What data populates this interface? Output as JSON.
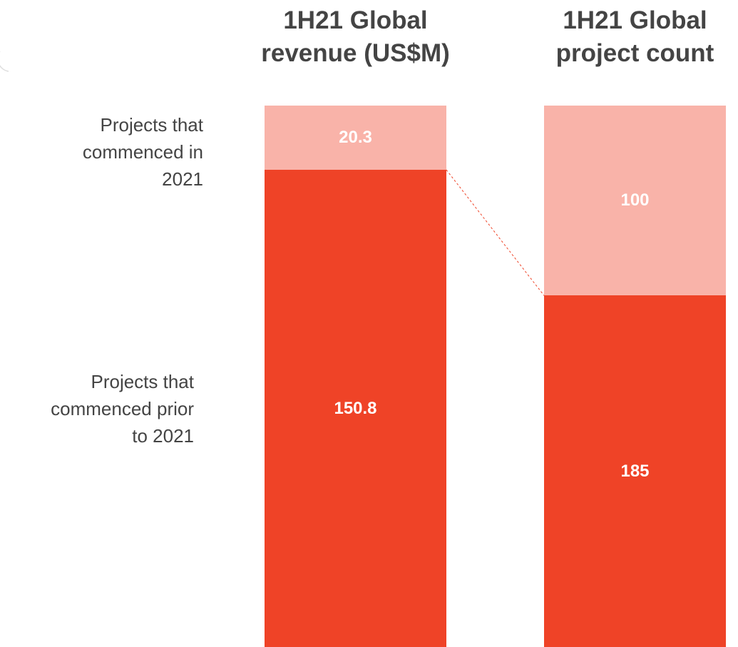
{
  "chart_data": {
    "type": "bar",
    "stacking": "percent",
    "categories": [
      "1H21 Global revenue (US$M)",
      "1H21 Global project count"
    ],
    "series": [
      {
        "name": "Projects that commenced prior to 2021",
        "color": "#ef4327",
        "values": [
          150.8,
          185
        ]
      },
      {
        "name": "Projects that commenced in 2021",
        "color": "#f9b3a9",
        "values": [
          20.3,
          100
        ]
      }
    ]
  }
}
